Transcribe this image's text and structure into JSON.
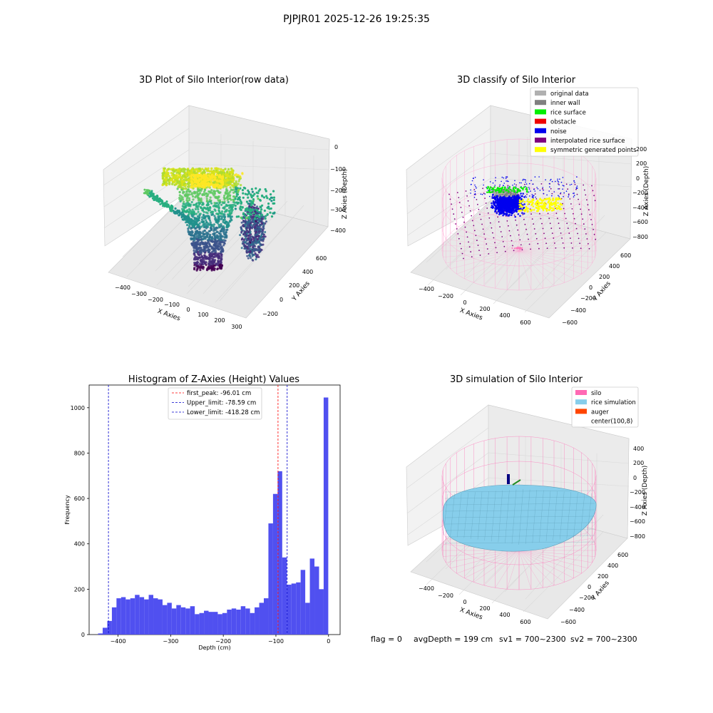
{
  "figure": {
    "suptitle": "PJPJR01 2025-12-26 19:25:35",
    "footer": {
      "flag": "flag = 0",
      "avg_depth": "avgDepth = 199 cm",
      "sv1": "sv1 = 700~2300",
      "sv2": "sv2 = 700~2300"
    }
  },
  "chart_data": [
    {
      "type": "scatter",
      "title": "3D Plot of Silo Interior(row data)",
      "xlabel": "X Axies",
      "ylabel": "Y Axies",
      "zlabel": "Z Axies (Depth)",
      "x_ticks": [
        "−400",
        "−300",
        "−200",
        "−100",
        "0",
        "100",
        "200",
        "300"
      ],
      "y_ticks": [
        "−200",
        "0",
        "200",
        "400",
        "600"
      ],
      "z_ticks": [
        "0",
        "−100",
        "−200",
        "−300",
        "−400"
      ],
      "xlim": [
        -450,
        320
      ],
      "ylim": [
        -250,
        650
      ],
      "zlim": [
        -470,
        10
      ],
      "colormap": "viridis"
    },
    {
      "type": "scatter",
      "title": "3D classify of Silo Interior",
      "xlabel": "X Axies",
      "ylabel": "Y Axies",
      "zlabel": "Z Axies (Depth)",
      "x_ticks": [
        "−400",
        "−200",
        "0",
        "200",
        "400",
        "600"
      ],
      "y_ticks": [
        "−600",
        "−400",
        "−200",
        "0",
        "200",
        "400",
        "600"
      ],
      "z_ticks": [
        "200",
        "0",
        "−200",
        "−400",
        "−600",
        "−800"
      ],
      "legend_position": "upper-right",
      "legend": [
        {
          "label": "original data",
          "color": "#b0b0b0"
        },
        {
          "label": "inner wall",
          "color": "#808080"
        },
        {
          "label": "rice surface",
          "color": "#00ee00"
        },
        {
          "label": "obstacle",
          "color": "#ee0000"
        },
        {
          "label": "noise",
          "color": "#0000ee"
        },
        {
          "label": "interpolated rice surface",
          "color": "#800080"
        },
        {
          "label": "symmetric generated points",
          "color": "#ffff00"
        }
      ]
    },
    {
      "type": "bar",
      "title": "Histogram of Z-Axies (Height) Values",
      "xlabel": "Depth (cm)",
      "ylabel": "Frequency",
      "xlim": [
        -455,
        22
      ],
      "ylim": [
        0,
        1100
      ],
      "x_ticks": [
        -400,
        -300,
        -200,
        -100,
        0
      ],
      "x_tick_labels": [
        "−400",
        "−300",
        "−200",
        "−100",
        "0"
      ],
      "y_ticks": [
        0,
        200,
        400,
        600,
        800,
        1000
      ],
      "bar_color": "#5050f0",
      "bin_start": -438,
      "bin_width": 8.75,
      "values": [
        5,
        30,
        60,
        120,
        160,
        165,
        155,
        160,
        175,
        165,
        155,
        175,
        160,
        155,
        130,
        140,
        115,
        130,
        120,
        115,
        125,
        90,
        95,
        105,
        100,
        100,
        90,
        95,
        110,
        115,
        110,
        125,
        115,
        95,
        120,
        140,
        160,
        490,
        620,
        720,
        340,
        220,
        225,
        230,
        285,
        140,
        335,
        300,
        200,
        1045
      ],
      "vlines": [
        {
          "label": "first_peak: -96.01 cm",
          "x": -96.01,
          "color": "#ff0000"
        },
        {
          "label": "Upper_limit: -78.59 cm",
          "x": -78.59,
          "color": "#0000cc"
        },
        {
          "label": "Lower_limit: -418.28 cm",
          "x": -418.28,
          "color": "#0000cc"
        }
      ],
      "legend_position": "upper-center"
    },
    {
      "type": "scatter",
      "title": "3D simulation of Silo Interior",
      "xlabel": "X Axies",
      "ylabel": "Y Axies",
      "zlabel": "Z Axies (Depth)",
      "x_ticks": [
        "−400",
        "−200",
        "0",
        "200",
        "400",
        "600"
      ],
      "y_ticks": [
        "−600",
        "−400",
        "−200",
        "0",
        "200",
        "400",
        "600"
      ],
      "z_ticks": [
        "400",
        "200",
        "0",
        "−200",
        "−400",
        "−600",
        "−800"
      ],
      "legend_position": "upper-right",
      "legend": [
        {
          "label": "silo",
          "color": "#ff69b4"
        },
        {
          "label": "rice simulation",
          "color": "#87ceeb"
        },
        {
          "label": "auger",
          "color": "#ff4500"
        },
        {
          "label": "center(100,8)",
          "color": ""
        }
      ]
    }
  ]
}
